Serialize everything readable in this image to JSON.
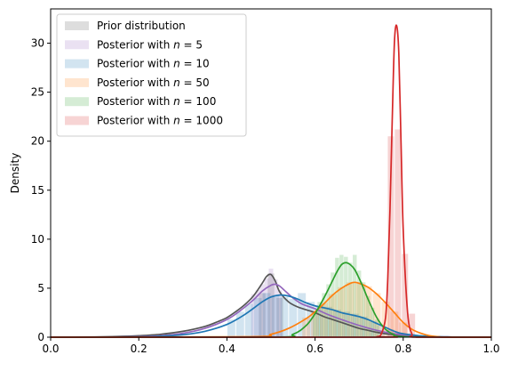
{
  "chart_data": {
    "type": "line",
    "title": "",
    "xlabel": "",
    "ylabel": "Density",
    "xlim": [
      0.0,
      1.0
    ],
    "ylim": [
      0,
      33.5
    ],
    "xticks": [
      0.0,
      0.2,
      0.4,
      0.6,
      0.8,
      1.0
    ],
    "xtick_labels": [
      "0.0",
      "0.2",
      "0.4",
      "0.6",
      "0.8",
      "1.0"
    ],
    "yticks": [
      0,
      5,
      10,
      15,
      20,
      25,
      30
    ],
    "ytick_labels": [
      "0",
      "5",
      "10",
      "15",
      "20",
      "25",
      "30"
    ],
    "grid": false,
    "legend_position": "top-left",
    "legend": [
      {
        "prefix": "Prior distribution",
        "n": "",
        "color": "#555555"
      },
      {
        "prefix": "Posterior with ",
        "n": "5",
        "color": "#9467bd"
      },
      {
        "prefix": "Posterior with ",
        "n": "10",
        "color": "#1f77b4"
      },
      {
        "prefix": "Posterior with ",
        "n": "50",
        "color": "#ff7f0e"
      },
      {
        "prefix": "Posterior with ",
        "n": "100",
        "color": "#2ca02c"
      },
      {
        "prefix": "Posterior with ",
        "n": "1000",
        "color": "#d62728"
      }
    ],
    "series": [
      {
        "color": "#555555",
        "curve": {
          "x": [
            0.0,
            0.05,
            0.1,
            0.15,
            0.2,
            0.25,
            0.3,
            0.35,
            0.38,
            0.4,
            0.42,
            0.44,
            0.46,
            0.48,
            0.49,
            0.5,
            0.51,
            0.52,
            0.54,
            0.56,
            0.58,
            0.6,
            0.62,
            0.64,
            0.66,
            0.68,
            0.7,
            0.72,
            0.74,
            0.76,
            0.78,
            0.8,
            0.85,
            0.9,
            0.95,
            1.0
          ],
          "y": [
            0.0,
            0.01,
            0.03,
            0.07,
            0.15,
            0.3,
            0.6,
            1.1,
            1.6,
            2.0,
            2.6,
            3.3,
            4.2,
            5.5,
            6.2,
            6.4,
            5.7,
            4.6,
            3.6,
            3.1,
            2.8,
            2.5,
            2.1,
            1.8,
            1.5,
            1.2,
            0.9,
            0.7,
            0.5,
            0.35,
            0.25,
            0.15,
            0.06,
            0.02,
            0.01,
            0.0
          ]
        },
        "hist": {
          "x": [
            0.48,
            0.5,
            0.52
          ],
          "y": [
            4.5,
            6.5,
            4.0
          ],
          "width": 0.015
        }
      },
      {
        "color": "#9467bd",
        "curve": {
          "x": [
            0.0,
            0.1,
            0.2,
            0.25,
            0.3,
            0.35,
            0.4,
            0.43,
            0.46,
            0.48,
            0.5,
            0.51,
            0.52,
            0.53,
            0.55,
            0.57,
            0.6,
            0.63,
            0.66,
            0.7,
            0.74,
            0.78,
            0.82,
            0.86,
            0.9,
            0.95,
            1.0
          ],
          "y": [
            0.0,
            0.0,
            0.05,
            0.15,
            0.4,
            0.9,
            1.8,
            2.7,
            3.8,
            4.7,
            5.3,
            5.4,
            5.2,
            4.8,
            4.0,
            3.4,
            2.9,
            2.3,
            1.8,
            1.2,
            0.7,
            0.35,
            0.15,
            0.05,
            0.02,
            0.0,
            0.0
          ]
        },
        "hist": {
          "x": [
            0.46,
            0.47,
            0.48,
            0.49,
            0.5,
            0.51,
            0.52
          ],
          "y": [
            4.4,
            4.8,
            5.4,
            6.0,
            7.0,
            5.9,
            4.8
          ],
          "width": 0.01
        }
      },
      {
        "color": "#1f77b4",
        "curve": {
          "x": [
            0.0,
            0.2,
            0.25,
            0.3,
            0.35,
            0.4,
            0.44,
            0.48,
            0.5,
            0.52,
            0.54,
            0.56,
            0.58,
            0.6,
            0.62,
            0.64,
            0.66,
            0.68,
            0.7,
            0.72,
            0.74,
            0.76,
            0.78,
            0.8,
            0.85,
            0.9,
            0.95,
            1.0
          ],
          "y": [
            0.0,
            0.03,
            0.1,
            0.25,
            0.6,
            1.3,
            2.3,
            3.6,
            4.1,
            4.3,
            4.2,
            3.9,
            3.5,
            3.2,
            3.0,
            2.8,
            2.5,
            2.3,
            2.1,
            1.8,
            1.4,
            1.0,
            0.6,
            0.35,
            0.1,
            0.02,
            0.0,
            0.0
          ]
        },
        "hist": {
          "x": [
            0.41,
            0.43,
            0.45,
            0.47,
            0.49,
            0.51,
            0.53,
            0.55,
            0.57,
            0.59,
            0.61,
            0.63,
            0.65,
            0.67,
            0.69,
            0.71,
            0.73,
            0.75,
            0.77,
            0.79
          ],
          "y": [
            1.8,
            2.6,
            3.4,
            4.0,
            4.5,
            4.3,
            4.1,
            3.9,
            4.5,
            3.6,
            3.2,
            3.1,
            2.8,
            2.6,
            2.4,
            2.1,
            1.6,
            1.2,
            0.8,
            0.4
          ],
          "width": 0.018
        }
      },
      {
        "color": "#ff7f0e",
        "curve": {
          "x": [
            0.0,
            0.45,
            0.5,
            0.54,
            0.58,
            0.6,
            0.62,
            0.64,
            0.66,
            0.68,
            0.69,
            0.7,
            0.72,
            0.74,
            0.76,
            0.78,
            0.8,
            0.82,
            0.84,
            0.86,
            0.88,
            0.9,
            1.0
          ],
          "y": [
            0.0,
            0.05,
            0.3,
            0.9,
            1.9,
            2.6,
            3.4,
            4.3,
            5.0,
            5.5,
            5.6,
            5.5,
            5.1,
            4.4,
            3.5,
            2.5,
            1.5,
            0.8,
            0.4,
            0.15,
            0.05,
            0.0,
            0.0
          ]
        },
        "hist": {
          "x": [
            0.58,
            0.6,
            0.62,
            0.64,
            0.66,
            0.68,
            0.7,
            0.72,
            0.74,
            0.76,
            0.78,
            0.8
          ],
          "y": [
            2.0,
            2.7,
            3.5,
            4.4,
            5.1,
            5.6,
            5.6,
            5.2,
            4.5,
            3.6,
            2.6,
            1.5
          ],
          "width": 0.018
        }
      },
      {
        "color": "#2ca02c",
        "curve": {
          "x": [
            0.0,
            0.5,
            0.55,
            0.58,
            0.6,
            0.62,
            0.64,
            0.65,
            0.66,
            0.67,
            0.68,
            0.69,
            0.7,
            0.71,
            0.72,
            0.74,
            0.76,
            0.78,
            0.8,
            1.0
          ],
          "y": [
            0.0,
            0.0,
            0.3,
            1.2,
            2.4,
            4.0,
            5.8,
            6.7,
            7.4,
            7.6,
            7.4,
            6.9,
            6.0,
            5.0,
            3.9,
            2.0,
            0.8,
            0.25,
            0.05,
            0.0
          ]
        },
        "hist": {
          "x": [
            0.6,
            0.61,
            0.62,
            0.63,
            0.64,
            0.65,
            0.66,
            0.67,
            0.68,
            0.69,
            0.7,
            0.71,
            0.72,
            0.73,
            0.74
          ],
          "y": [
            2.6,
            3.6,
            4.5,
            5.4,
            6.6,
            8.1,
            8.4,
            8.2,
            7.6,
            8.4,
            6.8,
            5.6,
            4.2,
            3.0,
            1.8
          ],
          "width": 0.009
        }
      },
      {
        "color": "#d62728",
        "curve": {
          "x": [
            0.0,
            0.73,
            0.74,
            0.75,
            0.76,
            0.765,
            0.77,
            0.775,
            0.78,
            0.785,
            0.79,
            0.795,
            0.8,
            0.81,
            0.82,
            0.83,
            1.0
          ],
          "y": [
            0.0,
            0.0,
            0.05,
            0.3,
            2.0,
            6.0,
            13.0,
            22.0,
            30.0,
            31.8,
            29.0,
            20.0,
            11.0,
            2.5,
            0.3,
            0.0,
            0.0
          ]
        },
        "hist": {
          "x": [
            0.772,
            0.788,
            0.804,
            0.82
          ],
          "y": [
            20.5,
            21.2,
            8.5,
            2.4
          ],
          "width": 0.014
        }
      }
    ]
  }
}
